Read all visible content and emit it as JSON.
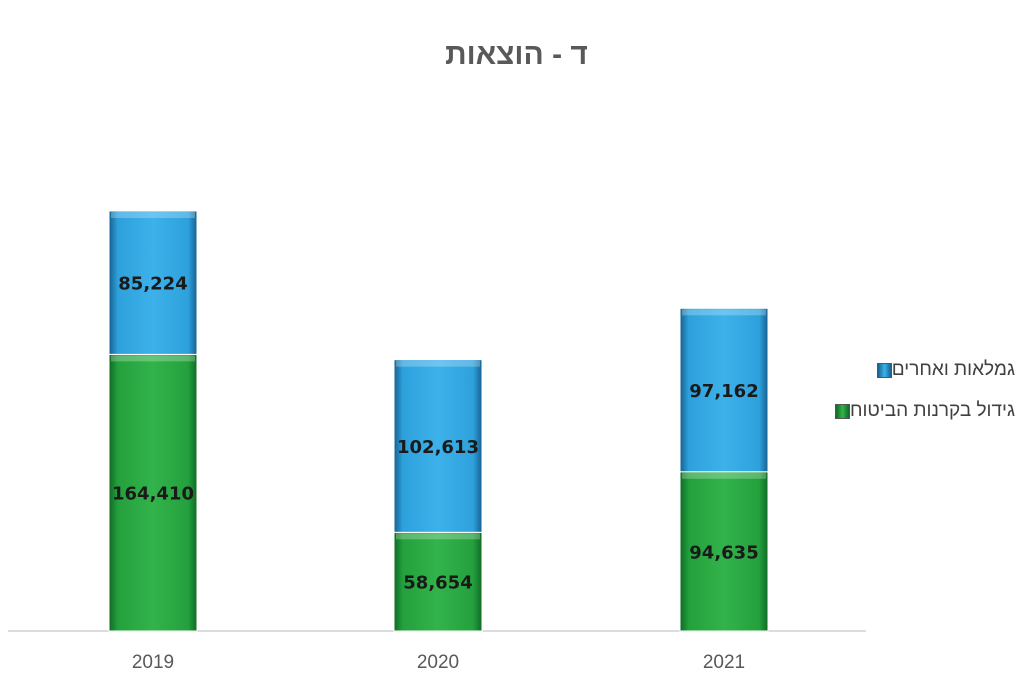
{
  "chart_data": {
    "type": "bar",
    "stacked": true,
    "title": "ד - הוצאות",
    "categories": [
      "2019",
      "2020",
      "2021"
    ],
    "series": [
      {
        "name": "גידול בקרנות הביטוח",
        "values": [
          164410,
          58654,
          94635
        ],
        "color": "#2eae46"
      },
      {
        "name": "גמלאות ואחרים",
        "values": [
          85224,
          102613,
          97162
        ],
        "color": "#3aaee6"
      }
    ],
    "ylim": [
      0,
      262000
    ],
    "xlabel": "",
    "ylabel": "",
    "grid": false,
    "legend_position": "right"
  }
}
